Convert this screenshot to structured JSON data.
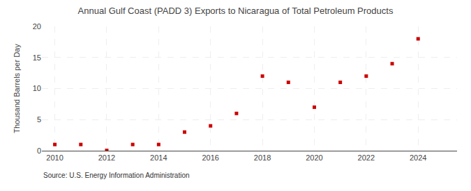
{
  "chart_data": {
    "type": "scatter",
    "title": "Annual Gulf Coast (PADD 3) Exports to Nicaragua of Total Petroleum Products",
    "ylabel": "Thousand Barrels per Day",
    "annotation": "Source: U.S. Energy Information Administration",
    "x": [
      2010,
      2011,
      2012,
      2013,
      2014,
      2015,
      2016,
      2017,
      2018,
      2019,
      2020,
      2021,
      2022,
      2023,
      2024
    ],
    "values": [
      1.0,
      1.0,
      0.05,
      1.0,
      1.0,
      3.0,
      4.0,
      6.0,
      12.0,
      11.0,
      7.0,
      11.0,
      12.0,
      14.0,
      18.0
    ],
    "color": "#cc0000",
    "marker": "square",
    "xlim": [
      2009.5,
      2025.5
    ],
    "xticks": [
      2010,
      2012,
      2014,
      2016,
      2018,
      2020,
      2022,
      2024
    ],
    "ylim": [
      0,
      20
    ],
    "yticks": [
      0,
      5,
      10,
      15,
      20
    ],
    "grid": true
  }
}
